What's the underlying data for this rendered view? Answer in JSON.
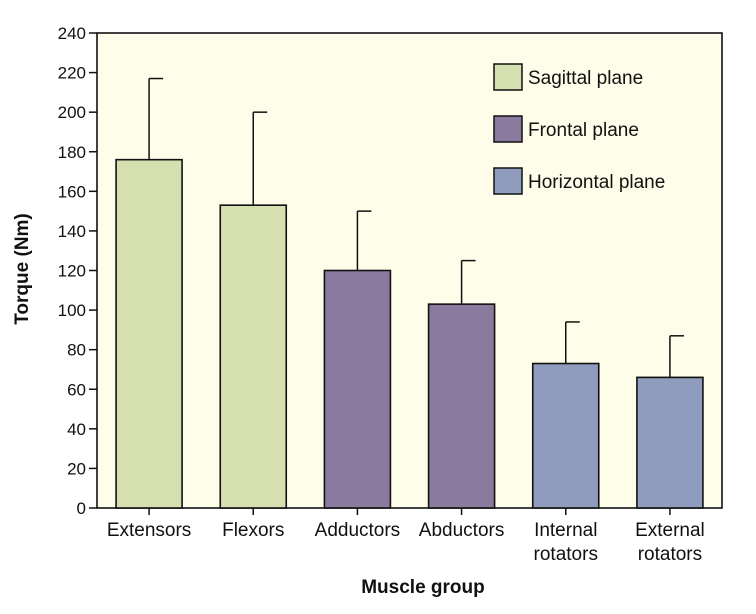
{
  "chart_data": {
    "type": "bar",
    "title": "",
    "xlabel": "Muscle group",
    "ylabel": "Torque (Nm)",
    "ylim": [
      0,
      240
    ],
    "yticks": [
      0,
      20,
      40,
      60,
      80,
      100,
      120,
      140,
      160,
      180,
      200,
      220,
      240
    ],
    "grid": false,
    "legend_position": "top-right",
    "categories": [
      [
        "Extensors"
      ],
      [
        "Flexors"
      ],
      [
        "Adductors"
      ],
      [
        "Abductors"
      ],
      [
        "Internal",
        "rotators"
      ],
      [
        "External",
        "rotators"
      ]
    ],
    "values": [
      176,
      153,
      120,
      103,
      73,
      66
    ],
    "error_upper": [
      217,
      200,
      150,
      125,
      94,
      87
    ],
    "bar_group": [
      "sagittal",
      "sagittal",
      "frontal",
      "frontal",
      "horizontal",
      "horizontal"
    ],
    "legend": [
      {
        "key": "sagittal",
        "label": "Sagittal plane",
        "color": "#d6dfb0"
      },
      {
        "key": "frontal",
        "label": "Frontal plane",
        "color": "#8a7a9e"
      },
      {
        "key": "horizontal",
        "label": "Horizontal plane",
        "color": "#8f9cbd"
      }
    ],
    "plot_background": "#fdfdea"
  }
}
